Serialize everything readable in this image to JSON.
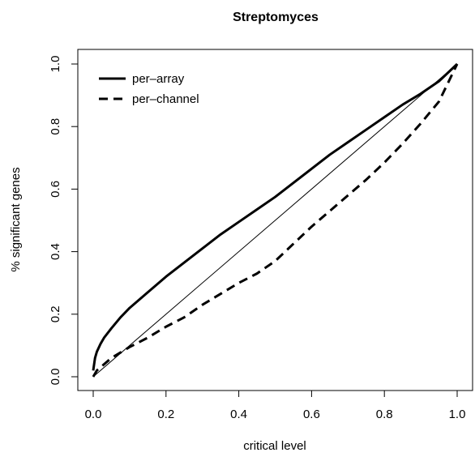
{
  "chart_data": {
    "type": "line",
    "title": "Streptomyces",
    "xlabel": "critical level",
    "ylabel": "% significant genes",
    "xlim": [
      0,
      1
    ],
    "ylim": [
      0,
      1
    ],
    "xticks": [
      0.0,
      0.2,
      0.4,
      0.6,
      0.8,
      1.0
    ],
    "yticks": [
      0.0,
      0.2,
      0.4,
      0.6,
      0.8,
      1.0
    ],
    "xtick_labels": [
      "0.0",
      "0.2",
      "0.4",
      "0.6",
      "0.8",
      "1.0"
    ],
    "ytick_labels": [
      "0.0",
      "0.2",
      "0.4",
      "0.6",
      "0.8",
      "1.0"
    ],
    "grid": false,
    "legend_position": "top-left",
    "reference_line": {
      "x": [
        0,
        1
      ],
      "y": [
        0,
        1
      ]
    },
    "series": [
      {
        "name": "per–array",
        "style": "solid",
        "x": [
          0.0,
          0.005,
          0.01,
          0.02,
          0.03,
          0.05,
          0.075,
          0.1,
          0.15,
          0.2,
          0.25,
          0.3,
          0.35,
          0.4,
          0.45,
          0.5,
          0.55,
          0.6,
          0.65,
          0.7,
          0.75,
          0.8,
          0.85,
          0.9,
          0.95,
          1.0
        ],
        "y": [
          0.02,
          0.06,
          0.08,
          0.105,
          0.125,
          0.155,
          0.19,
          0.22,
          0.27,
          0.32,
          0.365,
          0.41,
          0.455,
          0.495,
          0.535,
          0.575,
          0.62,
          0.665,
          0.71,
          0.75,
          0.79,
          0.83,
          0.87,
          0.905,
          0.945,
          1.0
        ]
      },
      {
        "name": "per–channel",
        "style": "dashed",
        "x": [
          0.0,
          0.01,
          0.03,
          0.05,
          0.1,
          0.15,
          0.2,
          0.25,
          0.3,
          0.35,
          0.4,
          0.45,
          0.5,
          0.55,
          0.6,
          0.65,
          0.7,
          0.75,
          0.8,
          0.85,
          0.9,
          0.95,
          1.0
        ],
        "y": [
          0.0,
          0.02,
          0.04,
          0.06,
          0.095,
          0.125,
          0.16,
          0.19,
          0.23,
          0.265,
          0.3,
          0.33,
          0.37,
          0.425,
          0.48,
          0.53,
          0.58,
          0.63,
          0.685,
          0.745,
          0.81,
          0.88,
          1.0
        ]
      }
    ]
  }
}
